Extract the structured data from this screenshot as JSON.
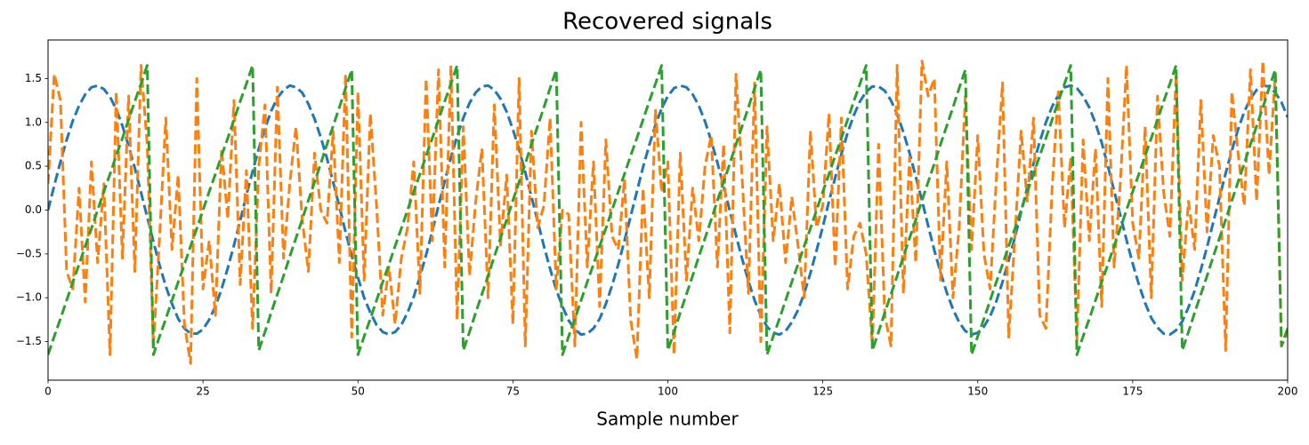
{
  "chart_data": {
    "type": "line",
    "title": "Recovered signals",
    "x_label": "Sample number",
    "x": [
      0,
      1,
      2,
      3,
      4,
      5,
      6,
      7,
      8,
      9,
      10,
      11,
      12,
      13,
      14,
      15,
      16,
      17,
      18,
      19,
      20,
      21,
      22,
      23,
      24,
      25,
      26,
      27,
      28,
      29,
      30,
      31,
      32,
      33,
      34,
      35,
      36,
      37,
      38,
      39,
      40,
      41,
      42,
      43,
      44,
      45,
      46,
      47,
      48,
      49,
      50,
      51,
      52,
      53,
      54,
      55,
      56,
      57,
      58,
      59,
      60,
      61,
      62,
      63,
      64,
      65,
      66,
      67,
      68,
      69,
      70,
      71,
      72,
      73,
      74,
      75,
      76,
      77,
      78,
      79,
      80,
      81,
      82,
      83,
      84,
      85,
      86,
      87,
      88,
      89,
      90,
      91,
      92,
      93,
      94,
      95,
      96,
      97,
      98,
      99,
      100,
      101,
      102,
      103,
      104,
      105,
      106,
      107,
      108,
      109,
      110,
      111,
      112,
      113,
      114,
      115,
      116,
      117,
      118,
      119,
      120,
      121,
      122,
      123,
      124,
      125,
      126,
      127,
      128,
      129,
      130,
      131,
      132,
      133,
      134,
      135,
      136,
      137,
      138,
      139,
      140,
      141,
      142,
      143,
      144,
      145,
      146,
      147,
      148,
      149,
      150,
      151,
      152,
      153,
      154,
      155,
      156,
      157,
      158,
      159,
      160,
      161,
      162,
      163,
      164,
      165,
      166,
      167,
      168,
      169,
      170,
      171,
      172,
      173,
      174,
      175,
      176,
      177,
      178,
      179,
      180,
      181,
      182,
      183,
      184,
      185,
      186,
      187,
      188,
      189,
      190,
      191,
      192,
      193,
      194,
      195,
      196,
      197,
      198,
      199,
      200
    ],
    "series": [
      {
        "color": "#1f77b4",
        "values": [
          0,
          0.28,
          0.55,
          0.8,
          1.02,
          1.19,
          1.32,
          1.4,
          1.42,
          1.38,
          1.29,
          1.15,
          0.96,
          0.73,
          0.48,
          0.2,
          -0.08,
          -0.36,
          -0.63,
          -0.87,
          -1.07,
          -1.24,
          -1.35,
          -1.41,
          -1.41,
          -1.36,
          -1.25,
          -1.1,
          -0.9,
          -0.66,
          -0.4,
          -0.12,
          0.17,
          0.44,
          0.7,
          0.93,
          1.13,
          1.28,
          1.37,
          1.42,
          1.4,
          1.34,
          1.21,
          1.04,
          0.83,
          0.59,
          0.32,
          0.04,
          -0.25,
          -0.52,
          -0.77,
          -1.0,
          -1.17,
          -1.31,
          -1.39,
          -1.42,
          -1.39,
          -1.31,
          -1.17,
          -0.99,
          -0.76,
          -0.51,
          -0.24,
          0.05,
          0.33,
          0.6,
          0.84,
          1.05,
          1.22,
          1.34,
          1.41,
          1.42,
          1.37,
          1.27,
          1.12,
          0.92,
          0.69,
          0.43,
          0.15,
          -0.13,
          -0.41,
          -0.67,
          -0.91,
          -1.1,
          -1.26,
          -1.36,
          -1.42,
          -1.41,
          -1.35,
          -1.24,
          -1.07,
          -0.86,
          -0.62,
          -0.35,
          -0.07,
          0.21,
          0.49,
          0.74,
          0.97,
          1.16,
          1.3,
          1.39,
          1.42,
          1.4,
          1.32,
          1.19,
          1.01,
          0.79,
          0.54,
          0.27,
          -0.01,
          -0.29,
          -0.56,
          -0.81,
          -1.03,
          -1.2,
          -1.33,
          -1.4,
          -1.42,
          -1.38,
          -1.28,
          -1.14,
          -0.95,
          -0.72,
          -0.46,
          -0.19,
          0.1,
          0.37,
          0.64,
          0.88,
          1.08,
          1.24,
          1.35,
          1.41,
          1.41,
          1.36,
          1.25,
          1.09,
          0.89,
          0.65,
          0.38,
          0.11,
          -0.18,
          -0.46,
          -0.71,
          -0.94,
          -1.13,
          -1.28,
          -1.38,
          -1.42,
          -1.4,
          -1.33,
          -1.21,
          -1.04,
          -0.82,
          -0.57,
          -0.31,
          -0.02,
          0.26,
          0.53,
          0.78,
          1.0,
          1.18,
          1.31,
          1.4,
          1.42,
          1.39,
          1.3,
          1.17,
          0.99,
          0.77,
          0.5,
          0.22,
          -0.06,
          -0.34,
          -0.61,
          -0.85,
          -1.06,
          -1.23,
          -1.34,
          -1.41,
          -1.42,
          -1.37,
          -1.27,
          -1.11,
          -0.92,
          -0.68,
          -0.42,
          -0.14,
          0.14,
          0.42,
          0.68,
          0.92,
          1.12,
          1.27,
          1.37,
          1.42,
          1.41,
          1.34,
          1.23,
          1.06
        ]
      },
      {
        "color": "#ff7f0e",
        "values": [
          0.3,
          1.55,
          1.25,
          -0.7,
          -0.9,
          0.25,
          -1.05,
          0.55,
          -0.6,
          0.3,
          -1.65,
          1.35,
          -0.55,
          1.3,
          -0.7,
          1.65,
          0.75,
          -1.55,
          -0.3,
          1.05,
          -0.45,
          0.4,
          -1.3,
          -1.75,
          1.5,
          -0.9,
          -0.35,
          -1.2,
          0.7,
          -0.1,
          1.25,
          -0.85,
          0.45,
          -1.35,
          0.5,
          1.2,
          -0.95,
          1.4,
          -0.55,
          0.3,
          0.95,
          -0.1,
          -0.7,
          0.65,
          0.0,
          -0.15,
          0.9,
          -0.6,
          1.55,
          -1.45,
          1.35,
          -0.8,
          1.1,
          0.05,
          -1.2,
          -0.65,
          -1.3,
          -0.55,
          -0.2,
          0.55,
          -0.95,
          1.5,
          -0.35,
          1.6,
          -0.65,
          1.65,
          -1.25,
          0.95,
          -0.75,
          0.1,
          0.7,
          -1.0,
          1.2,
          -0.4,
          0.4,
          -1.3,
          1.5,
          -1.55,
          0.9,
          -0.2,
          0.05,
          1.05,
          -0.9,
          0.0,
          -0.05,
          -1.55,
          1.0,
          -0.65,
          0.55,
          -1.1,
          0.8,
          -0.3,
          -0.45,
          0.35,
          -1.25,
          -1.7,
          0.25,
          -1.0,
          1.15,
          0.2,
          0.55,
          -1.65,
          0.65,
          -0.8,
          0.25,
          -0.35,
          0.5,
          0.85,
          -0.65,
          0.75,
          -1.4,
          1.55,
          0.35,
          -0.95,
          1.45,
          -1.5,
          0.95,
          -0.35,
          0.3,
          -0.6,
          0.15,
          -0.4,
          -1.0,
          0.9,
          -0.2,
          0.05,
          1.1,
          -0.65,
          1.05,
          -0.9,
          -0.3,
          -0.15,
          -0.5,
          -1.55,
          0.75,
          -1.2,
          -1.55,
          1.65,
          -0.95,
          0.6,
          -0.6,
          1.7,
          1.3,
          1.5,
          -0.8,
          0.55,
          -1.0,
          -0.2,
          1.3,
          -0.45,
          0.85,
          -0.5,
          -0.9,
          0.35,
          1.45,
          -1.45,
          -0.3,
          0.9,
          0.1,
          1.05,
          -1.2,
          -1.35,
          0.25,
          1.35,
          -0.2,
          0.6,
          -1.5,
          0.8,
          -0.35,
          0.7,
          -1.1,
          1.5,
          -0.65,
          0.3,
          1.65,
          -0.15,
          -0.55,
          0.95,
          -1.0,
          1.3,
          0.2,
          -0.3,
          1.55,
          -0.8,
          0.1,
          -0.45,
          1.25,
          -0.25,
          0.85,
          0.5,
          -1.6,
          1.35,
          0.65,
          0.05,
          1.6,
          0.1,
          1.7,
          0.4,
          1.55,
          -1.55,
          -1.4
        ]
      },
      {
        "color": "#2ca02c",
        "values": [
          -1.65,
          -1.44,
          -1.24,
          -1.03,
          -0.82,
          -0.62,
          -0.41,
          -0.21,
          0.0,
          0.21,
          0.41,
          0.62,
          0.82,
          1.03,
          1.24,
          1.44,
          1.65,
          -1.65,
          -1.44,
          -1.24,
          -1.03,
          -0.82,
          -0.62,
          -0.41,
          -0.21,
          0.0,
          0.21,
          0.41,
          0.62,
          0.82,
          1.03,
          1.24,
          1.44,
          1.65,
          -1.6,
          -1.39,
          -1.17,
          -0.96,
          -0.75,
          -0.53,
          -0.32,
          -0.11,
          0.11,
          0.32,
          0.53,
          0.75,
          0.96,
          1.17,
          1.39,
          1.6,
          -1.65,
          -1.44,
          -1.24,
          -1.03,
          -0.82,
          -0.62,
          -0.41,
          -0.21,
          0.0,
          0.21,
          0.41,
          0.62,
          0.82,
          1.03,
          1.24,
          1.44,
          1.65,
          -1.6,
          -1.39,
          -1.17,
          -0.96,
          -0.75,
          -0.53,
          -0.32,
          -0.11,
          0.11,
          0.32,
          0.53,
          0.75,
          0.96,
          1.17,
          1.39,
          1.6,
          -1.65,
          -1.44,
          -1.24,
          -1.03,
          -0.82,
          -0.62,
          -0.41,
          -0.21,
          0.0,
          0.21,
          0.41,
          0.62,
          0.82,
          1.03,
          1.24,
          1.44,
          1.65,
          -1.6,
          -1.39,
          -1.17,
          -0.96,
          -0.75,
          -0.53,
          -0.32,
          -0.11,
          0.11,
          0.32,
          0.53,
          0.75,
          0.96,
          1.17,
          1.39,
          1.6,
          -1.65,
          -1.44,
          -1.24,
          -1.03,
          -0.82,
          -0.62,
          -0.41,
          -0.21,
          0.0,
          0.21,
          0.41,
          0.62,
          0.82,
          1.03,
          1.24,
          1.44,
          1.65,
          -1.6,
          -1.39,
          -1.17,
          -0.96,
          -0.75,
          -0.53,
          -0.32,
          -0.11,
          0.11,
          0.32,
          0.53,
          0.75,
          0.96,
          1.17,
          1.39,
          1.6,
          -1.65,
          -1.44,
          -1.24,
          -1.03,
          -0.82,
          -0.62,
          -0.41,
          -0.21,
          0.0,
          0.21,
          0.41,
          0.62,
          0.82,
          1.03,
          1.24,
          1.44,
          1.65,
          -1.65,
          -1.44,
          -1.24,
          -1.03,
          -0.82,
          -0.62,
          -0.41,
          -0.21,
          0.0,
          0.21,
          0.41,
          0.62,
          0.82,
          1.03,
          1.24,
          1.44,
          1.65,
          -1.6,
          -1.39,
          -1.17,
          -0.96,
          -0.75,
          -0.53,
          -0.32,
          -0.11,
          0.11,
          0.32,
          0.53,
          0.75,
          0.96,
          1.17,
          1.39,
          1.6,
          -1.55,
          -1.35
        ]
      }
    ],
    "xlim": [
      0,
      200
    ],
    "xticks": [
      0,
      25,
      50,
      75,
      100,
      125,
      150,
      175,
      200
    ],
    "ylim": [
      -1.94,
      1.94
    ],
    "yticks": [
      {
        "value": -1.5,
        "label": "−1.5"
      },
      {
        "value": -1,
        "label": "−1.0"
      },
      {
        "value": -0.5,
        "label": "−0.5"
      },
      {
        "value": 0,
        "label": "0.0"
      },
      0.5,
      {
        "value": 1,
        "label": "1.0"
      },
      1.5
    ],
    "line_style": "dashed",
    "line_width": 3,
    "grid": false
  }
}
